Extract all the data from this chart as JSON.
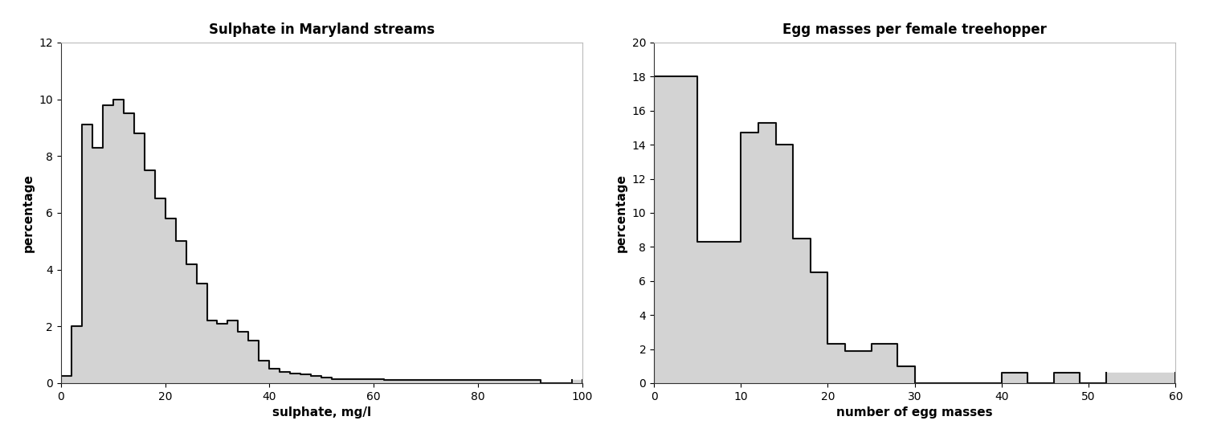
{
  "plot1": {
    "title": "Sulphate in Maryland streams",
    "xlabel": "sulphate, mg/l",
    "ylabel": "percentage",
    "xlim": [
      0,
      100
    ],
    "ylim": [
      0,
      12
    ],
    "yticks": [
      0,
      2,
      4,
      6,
      8,
      10,
      12
    ],
    "xticks": [
      0,
      20,
      40,
      60,
      80,
      100
    ],
    "bin_edges": [
      0,
      2,
      4,
      6,
      8,
      10,
      12,
      14,
      16,
      18,
      20,
      22,
      24,
      26,
      28,
      30,
      32,
      34,
      36,
      38,
      40,
      42,
      44,
      46,
      48,
      50,
      52,
      54,
      56,
      58,
      60,
      62,
      64,
      66,
      68,
      70,
      72,
      74,
      76,
      78,
      80,
      82,
      84,
      86,
      88,
      90,
      92,
      94,
      96,
      98,
      100
    ],
    "heights": [
      0.25,
      2.0,
      9.1,
      8.3,
      9.8,
      10.0,
      9.5,
      8.8,
      7.5,
      6.5,
      5.8,
      5.0,
      4.2,
      3.5,
      2.2,
      2.1,
      2.2,
      1.8,
      1.5,
      0.8,
      0.5,
      0.4,
      0.35,
      0.3,
      0.25,
      0.2,
      0.15,
      0.15,
      0.15,
      0.15,
      0.15,
      0.1,
      0.1,
      0.1,
      0.1,
      0.12,
      0.12,
      0.12,
      0.12,
      0.12,
      0.1,
      0.12,
      0.12,
      0.12,
      0.12,
      0.1,
      0.0,
      0.0,
      0.0,
      0.1
    ],
    "bar_color": "#d3d3d3",
    "edge_color": "#111111",
    "edge_width": 1.5
  },
  "plot2": {
    "title": "Egg masses per female treehopper",
    "xlabel": "number of egg masses",
    "ylabel": "percentage",
    "xlim": [
      0,
      60
    ],
    "ylim": [
      0,
      20
    ],
    "yticks": [
      0,
      2,
      4,
      6,
      8,
      10,
      12,
      14,
      16,
      18,
      20
    ],
    "xticks": [
      0,
      10,
      20,
      30,
      40,
      50,
      60
    ],
    "bin_edges": [
      0,
      5,
      10,
      12,
      14,
      16,
      18,
      20,
      22,
      25,
      28,
      30,
      35,
      40,
      43,
      46,
      49,
      52,
      60
    ],
    "heights": [
      18.0,
      8.3,
      14.7,
      15.3,
      14.0,
      8.5,
      6.5,
      2.3,
      1.9,
      2.3,
      1.0,
      0.0,
      0.0,
      0.6,
      0.0,
      0.6,
      0.0,
      0.6
    ],
    "bar_color": "#d3d3d3",
    "edge_color": "#111111",
    "edge_width": 1.5
  },
  "bg_color": "#ffffff",
  "title_fontsize": 12,
  "label_fontsize": 11,
  "tick_fontsize": 10,
  "font_family": "Arial"
}
